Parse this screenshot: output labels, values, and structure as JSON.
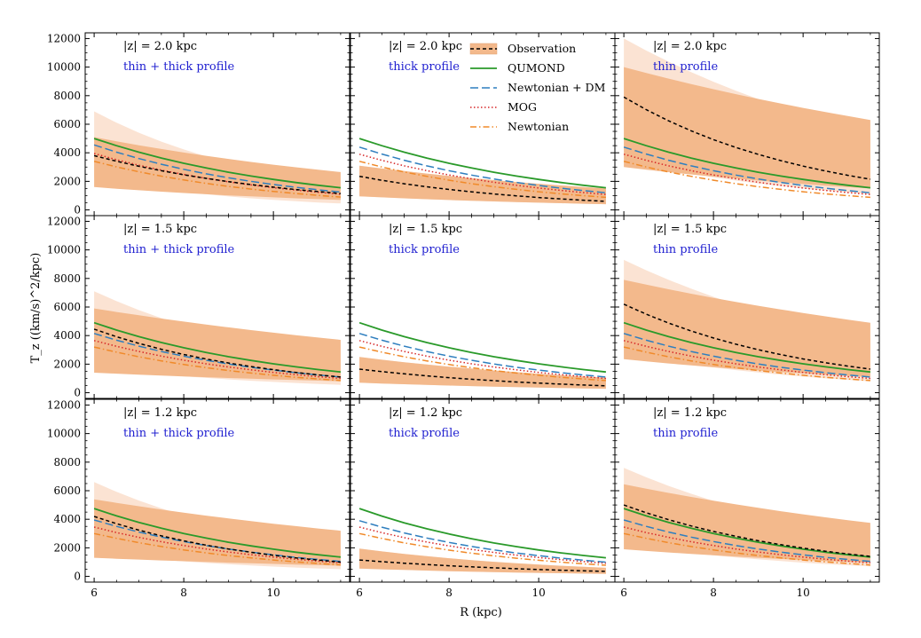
{
  "chart_data": {
    "type": "line",
    "layout": "3x3 grid (rows: |z|, columns: profile)",
    "xlabel": "R (kpc)",
    "ylabel": "T_z ((km/s)^2/kpc)",
    "xlim": [
      5.8,
      11.7
    ],
    "ylim": [
      -400,
      12400
    ],
    "xticks": [
      6,
      8,
      10
    ],
    "xtick_labels": [
      "6",
      "8",
      "10"
    ],
    "yticks": [
      0,
      2000,
      4000,
      6000,
      8000,
      10000,
      12000
    ],
    "ytick_labels": [
      "0",
      "2000",
      "4000",
      "6000",
      "8000",
      "10000",
      "12000"
    ],
    "x": [
      6.0,
      6.5,
      7.0,
      7.5,
      8.0,
      8.5,
      9.0,
      9.5,
      10.0,
      10.5,
      11.0,
      11.5
    ],
    "legend": {
      "position": "top of middle column, top row",
      "entries": [
        {
          "label": "Observation",
          "color": "#000000",
          "style": "dashed",
          "band_color": "#f3b98c"
        },
        {
          "label": "QUMOND",
          "color": "#2a9a2a",
          "style": "solid"
        },
        {
          "label": "Newtonian + DM",
          "color": "#2f7fbf",
          "style": "longdash"
        },
        {
          "label": "MOG",
          "color": "#d62728",
          "style": "dotted"
        },
        {
          "label": "Newtonian",
          "color": "#f08a2a",
          "style": "dashdot"
        }
      ]
    },
    "colors": {
      "band_inner": "#f3b98c",
      "band_outer": "#fbe3d3"
    },
    "panels": [
      {
        "z_label": "|z| = 2.0 kpc",
        "profile_label": "thin + thick profile",
        "series": [
          {
            "name": "Observation",
            "y0": 3800,
            "y1": 1150,
            "band1": [
              5100,
              2650,
              1600,
              700
            ],
            "band2": [
              6900,
              1800,
              2300,
              450
            ]
          },
          {
            "name": "QUMOND",
            "y0": 5000,
            "y1": 1550
          },
          {
            "name": "Newtonian + DM",
            "y0": 4550,
            "y1": 1250
          },
          {
            "name": "MOG",
            "y0": 3950,
            "y1": 1100
          },
          {
            "name": "Newtonian",
            "y0": 3400,
            "y1": 900
          }
        ]
      },
      {
        "z_label": "|z| = 2.0 kpc",
        "profile_label": "thick profile",
        "series": [
          {
            "name": "Observation",
            "y0": 2350,
            "y1": 600,
            "band1": [
              3100,
              1500,
              950,
              400
            ],
            "band2": [
              3100,
              1500,
              950,
              400
            ]
          },
          {
            "name": "QUMOND",
            "y0": 5000,
            "y1": 1550
          },
          {
            "name": "Newtonian + DM",
            "y0": 4400,
            "y1": 1200
          },
          {
            "name": "MOG",
            "y0": 3900,
            "y1": 1080
          },
          {
            "name": "Newtonian",
            "y0": 3400,
            "y1": 880
          }
        ]
      },
      {
        "z_label": "|z| = 2.0 kpc",
        "profile_label": "thin profile",
        "series": [
          {
            "name": "Observation",
            "y0": 7900,
            "y1": 2150,
            "band1": [
              10000,
              6300,
              3000,
              1500
            ],
            "band2": [
              12000,
              5400,
              3450,
              1100
            ]
          },
          {
            "name": "QUMOND",
            "y0": 5000,
            "y1": 1550
          },
          {
            "name": "Newtonian + DM",
            "y0": 4400,
            "y1": 1200
          },
          {
            "name": "MOG",
            "y0": 3900,
            "y1": 1080
          },
          {
            "name": "Newtonian",
            "y0": 3400,
            "y1": 880
          }
        ]
      },
      {
        "z_label": "|z| = 1.5 kpc",
        "profile_label": "thin + thick profile",
        "series": [
          {
            "name": "Observation",
            "y0": 4450,
            "y1": 1100,
            "band1": [
              5900,
              3700,
              1400,
              800
            ],
            "band2": [
              7100,
              2300,
              1750,
              550
            ]
          },
          {
            "name": "QUMOND",
            "y0": 4900,
            "y1": 1450
          },
          {
            "name": "Newtonian + DM",
            "y0": 4150,
            "y1": 1100
          },
          {
            "name": "MOG",
            "y0": 3650,
            "y1": 1000
          },
          {
            "name": "Newtonian",
            "y0": 3200,
            "y1": 850
          }
        ]
      },
      {
        "z_label": "|z| = 1.5 kpc",
        "profile_label": "thick profile",
        "series": [
          {
            "name": "Observation",
            "y0": 1650,
            "y1": 480,
            "band1": [
              2500,
              1050,
              700,
              280
            ],
            "band2": [
              2500,
              1050,
              700,
              280
            ]
          },
          {
            "name": "QUMOND",
            "y0": 4900,
            "y1": 1450
          },
          {
            "name": "Newtonian + DM",
            "y0": 4150,
            "y1": 1100
          },
          {
            "name": "MOG",
            "y0": 3650,
            "y1": 1000
          },
          {
            "name": "Newtonian",
            "y0": 3200,
            "y1": 850
          }
        ]
      },
      {
        "z_label": "|z| = 1.5 kpc",
        "profile_label": "thin profile",
        "series": [
          {
            "name": "Observation",
            "y0": 6200,
            "y1": 1650,
            "band1": [
              7900,
              4900,
              2350,
              1100
            ],
            "band2": [
              9300,
              3800,
              2800,
              800
            ]
          },
          {
            "name": "QUMOND",
            "y0": 4900,
            "y1": 1450
          },
          {
            "name": "Newtonian + DM",
            "y0": 4150,
            "y1": 1100
          },
          {
            "name": "MOG",
            "y0": 3650,
            "y1": 1000
          },
          {
            "name": "Newtonian",
            "y0": 3200,
            "y1": 850
          }
        ]
      },
      {
        "z_label": "|z| = 1.2 kpc",
        "profile_label": "thin + thick profile",
        "series": [
          {
            "name": "Observation",
            "y0": 4200,
            "y1": 1000,
            "band1": [
              5400,
              3200,
              1300,
              750
            ],
            "band2": [
              6600,
              2000,
              1600,
              500
            ]
          },
          {
            "name": "QUMOND",
            "y0": 4750,
            "y1": 1350
          },
          {
            "name": "Newtonian + DM",
            "y0": 3950,
            "y1": 1050
          },
          {
            "name": "MOG",
            "y0": 3450,
            "y1": 950
          },
          {
            "name": "Newtonian",
            "y0": 3000,
            "y1": 800
          }
        ]
      },
      {
        "z_label": "|z| = 1.2 kpc",
        "profile_label": "thick profile",
        "series": [
          {
            "name": "Observation",
            "y0": 1150,
            "y1": 350,
            "band1": [
              1950,
              600,
              550,
              180
            ],
            "band2": [
              1950,
              600,
              550,
              180
            ]
          },
          {
            "name": "QUMOND",
            "y0": 4750,
            "y1": 1300
          },
          {
            "name": "Newtonian + DM",
            "y0": 3900,
            "y1": 1000
          },
          {
            "name": "MOG",
            "y0": 3450,
            "y1": 920
          },
          {
            "name": "Newtonian",
            "y0": 3000,
            "y1": 780
          }
        ]
      },
      {
        "z_label": "|z| = 1.2 kpc",
        "profile_label": "thin profile",
        "series": [
          {
            "name": "Observation",
            "y0": 5000,
            "y1": 1400,
            "band1": [
              6450,
              3750,
              1900,
              950
            ],
            "band2": [
              7600,
              2800,
              2250,
              700
            ]
          },
          {
            "name": "QUMOND",
            "y0": 4750,
            "y1": 1350
          },
          {
            "name": "Newtonian + DM",
            "y0": 3950,
            "y1": 1050
          },
          {
            "name": "MOG",
            "y0": 3450,
            "y1": 950
          },
          {
            "name": "Newtonian",
            "y0": 3000,
            "y1": 800
          }
        ]
      }
    ]
  }
}
